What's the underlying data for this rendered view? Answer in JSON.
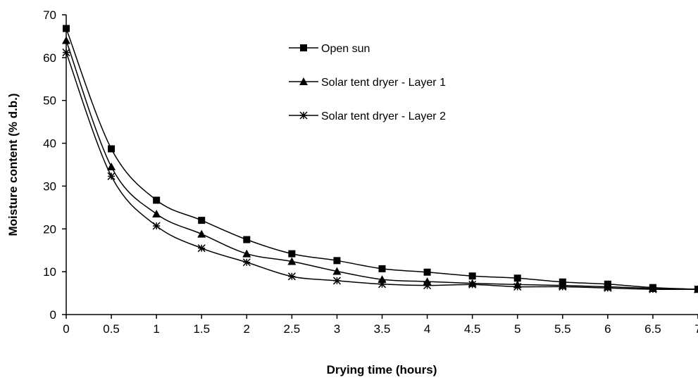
{
  "chart_data": {
    "type": "line",
    "title": "",
    "xlabel": "Drying time (hours)",
    "ylabel": "Moisture content (% d.b.)",
    "xlim": [
      0,
      7
    ],
    "ylim": [
      0,
      70
    ],
    "x_ticks": [
      "0",
      "0.5",
      "1",
      "1.5",
      "2",
      "2.5",
      "3",
      "3.5",
      "4",
      "4.5",
      "5",
      "5.5",
      "6",
      "6.5",
      "7"
    ],
    "y_ticks": [
      "0",
      "10",
      "20",
      "30",
      "40",
      "50",
      "60",
      "70"
    ],
    "grid": false,
    "legend_position": "top-center",
    "series": [
      {
        "name": "Open sun",
        "marker": "square",
        "color": "#000000",
        "x": [
          0,
          0.5,
          1,
          1.5,
          2,
          2.5,
          3,
          3.5,
          4,
          4.5,
          5,
          5.5,
          6,
          6.5,
          7
        ],
        "y": [
          66.8,
          38.7,
          26.7,
          22.0,
          17.5,
          14.2,
          12.6,
          10.7,
          9.9,
          9.0,
          8.5,
          7.6,
          7.1,
          6.3,
          5.9
        ]
      },
      {
        "name": "Solar tent dryer - Layer 1",
        "marker": "triangle",
        "color": "#000000",
        "x": [
          0,
          0.5,
          1,
          1.5,
          2,
          2.5,
          3,
          3.5,
          4,
          4.5,
          5,
          5.5,
          6,
          6.5,
          7
        ],
        "y": [
          64.0,
          34.5,
          23.5,
          18.8,
          14.2,
          12.4,
          10.1,
          8.2,
          7.7,
          7.3,
          7.0,
          6.8,
          6.5,
          6.1,
          5.9
        ]
      },
      {
        "name": "Solar tent dryer - Layer 2",
        "marker": "star",
        "color": "#000000",
        "x": [
          0,
          0.5,
          1,
          1.5,
          2,
          2.5,
          3,
          3.5,
          4,
          4.5,
          5,
          5.5,
          6,
          6.5,
          7
        ],
        "y": [
          61.2,
          32.3,
          20.7,
          15.5,
          12.2,
          8.9,
          7.9,
          7.1,
          6.8,
          7.0,
          6.5,
          6.5,
          6.2,
          5.9,
          5.9
        ]
      }
    ]
  }
}
